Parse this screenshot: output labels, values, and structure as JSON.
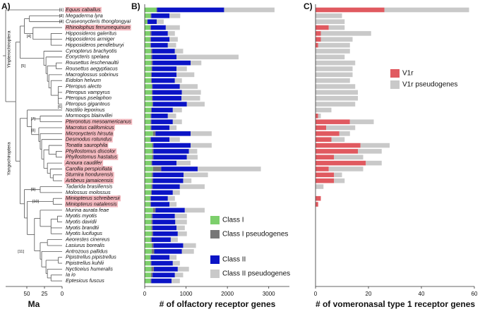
{
  "chart_data": [
    {
      "type": "tree",
      "label": "A)",
      "xlabel": "Ma",
      "xlim": [
        80,
        0
      ],
      "xticks": [
        50,
        25,
        0
      ],
      "leaves": [
        "Equus caballus",
        "Megaderma lyra",
        "Craseonycteris thonglongyai",
        "Rhinolophus ferrumequinum",
        "Hipposideros galeritus",
        "Hipposideros armiger",
        "Hipposideros pendleburyi",
        "Cynopterus brachyotis",
        "Eonycteris spelaea",
        "Rousettus leschenaultii",
        "Rousettus aegyptiacus",
        "Macroglossus sobrinus",
        "Eidolon helvum",
        "Pteropus alecto",
        "Pteropus vampyrus",
        "Pteropus pselaphon",
        "Pteropus giganteus",
        "Noctilio leporinus",
        "Mormoops blainvillei",
        "Pteronotus mesoamericanus",
        "Macrotus californicus",
        "Micronycteris hirsuta",
        "Desmodus rotundus",
        "Tonatia saurophila",
        "Phyllostomus discolor",
        "Phyllostomus hastatus",
        "Anoura caudifer",
        "Carollia perspicillata",
        "Sturnira hondurensis",
        "Artibeus jamaicensis",
        "Tadarida brasiliensis",
        "Molossus molossus",
        "Miniopterus schreibersii",
        "Miniopterus natalensis",
        "Murina aurata feae",
        "Myotis myotis",
        "Myotis davidii",
        "Myotis brandtii",
        "Myotis lucifugus",
        "Aeorestes cinereus",
        "Lasiurus borealis",
        "Antrozous pallidus",
        "Pipistrellus pipistrellus",
        "Pipistrellus kuhlii",
        "Nycticeius humeralis",
        "Ia io",
        "Eptesicus fuscus"
      ],
      "highlight": [
        true,
        false,
        false,
        true,
        false,
        false,
        false,
        false,
        false,
        false,
        false,
        false,
        false,
        false,
        false,
        false,
        false,
        false,
        false,
        true,
        true,
        true,
        true,
        true,
        true,
        true,
        true,
        true,
        true,
        true,
        false,
        false,
        true,
        true,
        false,
        false,
        false,
        false,
        false,
        false,
        false,
        false,
        false,
        false,
        false,
        false,
        false
      ],
      "highlight_color": "#f4b9bf",
      "node_labels": [
        "[1]",
        "[2]",
        "[3]",
        "[4]",
        "[5]",
        "[6]",
        "[7]",
        "[8]",
        "[9]",
        "[10]",
        "[11]"
      ],
      "clade_labels": [
        "Yinpterochiroptera",
        "Yangochiroptera"
      ]
    },
    {
      "type": "stacked_barh",
      "label": "B)",
      "xlabel": "# of olfactory receptor genes",
      "xlim": [
        0,
        3500
      ],
      "xticks": [
        0,
        1000,
        2000,
        3000
      ],
      "legend": "lower right",
      "series": [
        {
          "name": "Class I",
          "color": "#7dcf6c",
          "values": [
            280,
            140,
            60,
            130,
            130,
            130,
            130,
            150,
            150,
            160,
            160,
            150,
            150,
            170,
            170,
            170,
            180,
            150,
            140,
            140,
            140,
            200,
            130,
            180,
            180,
            180,
            160,
            200,
            170,
            170,
            160,
            150,
            130,
            130,
            200,
            160,
            160,
            160,
            170,
            140,
            170,
            170,
            130,
            140,
            160,
            150,
            140
          ]
        },
        {
          "name": "Class I pseudogenes",
          "color": "#777777",
          "values": [
            20,
            20,
            10,
            20,
            30,
            20,
            20,
            30,
            30,
            30,
            20,
            20,
            20,
            20,
            20,
            20,
            20,
            20,
            20,
            20,
            20,
            60,
            20,
            30,
            30,
            30,
            20,
            200,
            30,
            30,
            30,
            20,
            20,
            20,
            60,
            30,
            30,
            30,
            30,
            30,
            40,
            60,
            20,
            20,
            60,
            40,
            20
          ]
        },
        {
          "name": "Class II",
          "color": "#0b14c6",
          "values": [
            1620,
            440,
            220,
            360,
            400,
            450,
            410,
            550,
            590,
            920,
            590,
            600,
            560,
            660,
            710,
            700,
            820,
            510,
            400,
            520,
            440,
            850,
            450,
            900,
            860,
            810,
            590,
            880,
            740,
            730,
            660,
            510,
            410,
            450,
            710,
            540,
            550,
            580,
            600,
            460,
            720,
            670,
            450,
            520,
            580,
            540,
            490
          ]
        },
        {
          "name": "Class II pseudogenes",
          "color": "#c9c9c9",
          "values": [
            1220,
            260,
            170,
            340,
            170,
            200,
            200,
            200,
            1500,
            260,
            250,
            430,
            170,
            430,
            460,
            450,
            430,
            220,
            200,
            220,
            170,
            510,
            250,
            510,
            200,
            260,
            340,
            1530,
            590,
            200,
            600,
            170,
            170,
            170,
            480,
            290,
            280,
            200,
            220,
            170,
            310,
            290,
            170,
            170,
            270,
            200,
            200
          ]
        }
      ]
    },
    {
      "type": "stacked_barh",
      "label": "C)",
      "xlabel": "# of vomeronasal type 1 receptor genes",
      "xlim": [
        0,
        60
      ],
      "xticks": [
        0,
        20,
        40,
        60
      ],
      "legend": "upper right",
      "series": [
        {
          "name": "V1r",
          "color": "#e05a60",
          "values": [
            26,
            0,
            0,
            5,
            2,
            2,
            1,
            0,
            0,
            0,
            0,
            0,
            0,
            0,
            0,
            0,
            0,
            0,
            1,
            13,
            4,
            9,
            6,
            17,
            16,
            7,
            19,
            5,
            7,
            7,
            0,
            0,
            2,
            1,
            0,
            0,
            0,
            0,
            0,
            0,
            0,
            0,
            0,
            0,
            0,
            0,
            0
          ]
        },
        {
          "name": "V1r pseudogenes",
          "color": "#c9c9c9",
          "values": [
            32,
            10,
            11,
            6,
            19,
            12,
            12,
            13,
            11,
            15,
            14,
            14,
            13,
            15,
            16,
            16,
            15,
            6,
            1,
            9,
            11,
            4,
            5,
            11,
            9,
            11,
            6,
            13,
            3,
            4,
            3,
            0,
            0,
            0,
            0,
            0,
            0,
            0,
            0,
            0,
            0,
            0,
            0,
            0,
            0,
            0,
            0
          ]
        }
      ]
    }
  ]
}
